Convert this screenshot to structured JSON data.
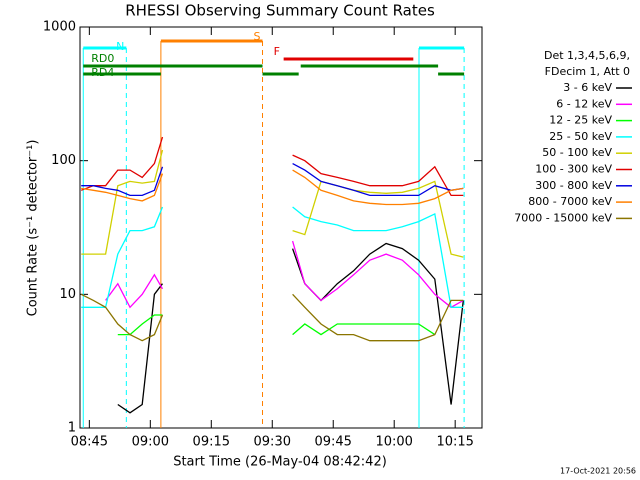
{
  "chart_data": {
    "type": "line",
    "title": "RHESSI Observing Summary Count Rates",
    "x_label": "Start Time (26-May-04 08:42:42)",
    "y_label": "Count Rate (s⁻¹ detector⁻¹)",
    "legend_header": [
      "Det 1,3,4,5,6,9,",
      "FDecim 1, Att 0"
    ],
    "footer": "17-Oct-2021 20:56",
    "log_y": true,
    "xlim": [
      522.7,
      621.6
    ],
    "xticks": [
      {
        "value": 525,
        "label": "08:45"
      },
      {
        "value": 540,
        "label": "09:00"
      },
      {
        "value": 555,
        "label": "09:15"
      },
      {
        "value": 570,
        "label": "09:30"
      },
      {
        "value": 585,
        "label": "09:45"
      },
      {
        "value": 600,
        "label": "10:00"
      },
      {
        "value": 615,
        "label": "10:15"
      }
    ],
    "ylim": [
      1,
      1000
    ],
    "yticks": [
      1,
      10,
      100,
      1000
    ],
    "x": [
      523,
      526,
      529,
      532,
      535,
      538,
      541,
      543,
      560,
      575,
      578,
      582,
      586,
      590,
      594,
      598,
      602,
      606,
      610,
      614,
      617
    ],
    "series": [
      {
        "name": "3 - 6 keV",
        "color": "#000000",
        "values": [
          null,
          null,
          null,
          1.5,
          1.3,
          1.5,
          10,
          12,
          null,
          22,
          12,
          9,
          12,
          15,
          20,
          24,
          22,
          18,
          13,
          1.5,
          9
        ]
      },
      {
        "name": "6 - 12 keV",
        "color": "#ff00ff",
        "values": [
          null,
          null,
          9,
          12,
          8,
          10,
          14,
          11,
          null,
          25,
          12,
          9,
          11,
          14,
          18,
          20,
          18,
          14,
          10,
          8,
          9
        ]
      },
      {
        "name": "12 - 25 keV",
        "color": "#00ff00",
        "values": [
          null,
          null,
          null,
          5,
          5,
          6,
          7,
          7,
          null,
          5,
          6,
          5,
          6,
          6,
          6,
          6,
          6,
          6,
          5,
          null,
          null
        ]
      },
      {
        "name": "25 - 50 keV",
        "color": "#00ffff",
        "values": [
          8,
          8,
          8,
          20,
          30,
          30,
          32,
          45,
          null,
          45,
          38,
          35,
          33,
          30,
          30,
          30,
          32,
          35,
          40,
          8,
          8
        ]
      },
      {
        "name": "50 - 100 keV",
        "color": "#d0d000",
        "values": [
          20,
          20,
          20,
          65,
          70,
          68,
          70,
          120,
          null,
          30,
          28,
          70,
          65,
          60,
          58,
          57,
          58,
          62,
          70,
          20,
          19
        ]
      },
      {
        "name": "100 - 300 keV",
        "color": "#e00000",
        "values": [
          60,
          65,
          65,
          85,
          85,
          75,
          95,
          150,
          null,
          110,
          100,
          80,
          75,
          70,
          65,
          65,
          65,
          70,
          90,
          55,
          55
        ]
      },
      {
        "name": "300 - 800 keV",
        "color": "#0000e0",
        "values": [
          65,
          65,
          62,
          60,
          55,
          55,
          60,
          90,
          null,
          95,
          85,
          70,
          65,
          60,
          55,
          55,
          55,
          55,
          65,
          60,
          62
        ]
      },
      {
        "name": "800 - 7000 keV",
        "color": "#ff8000",
        "values": [
          62,
          60,
          58,
          55,
          52,
          50,
          55,
          80,
          null,
          85,
          75,
          60,
          55,
          50,
          48,
          47,
          47,
          48,
          52,
          60,
          62
        ]
      },
      {
        "name": "7000 - 15000 keV",
        "color": "#8b7500",
        "values": [
          10,
          9,
          8,
          6,
          5,
          4.5,
          5,
          7,
          null,
          10,
          8,
          6,
          5,
          5,
          4.5,
          4.5,
          4.5,
          4.5,
          5,
          9,
          9
        ]
      }
    ],
    "flags": [
      {
        "label": "S",
        "color": "#ff8000",
        "vlines": true,
        "intervals": [
          [
            542.6,
            567.6
          ]
        ]
      },
      {
        "label": "N",
        "color": "#00ffff",
        "vlines": true,
        "intervals": [
          [
            523.5,
            534.1
          ],
          [
            606.1,
            617.2
          ]
        ]
      },
      {
        "label": "F",
        "color": "#e00000",
        "vlines": false,
        "intervals": [
          [
            572.8,
            604.7
          ]
        ]
      },
      {
        "label": "RD0",
        "color": "#008000",
        "vlines": false,
        "intervals": [
          [
            523.5,
            567.6
          ],
          [
            577,
            610.8
          ]
        ]
      },
      {
        "label": "RD4",
        "color": "#008000",
        "vlines": false,
        "intervals": [
          [
            523.5,
            542.6
          ],
          [
            567.6,
            576.5
          ],
          [
            610.8,
            617.2
          ]
        ]
      }
    ]
  }
}
